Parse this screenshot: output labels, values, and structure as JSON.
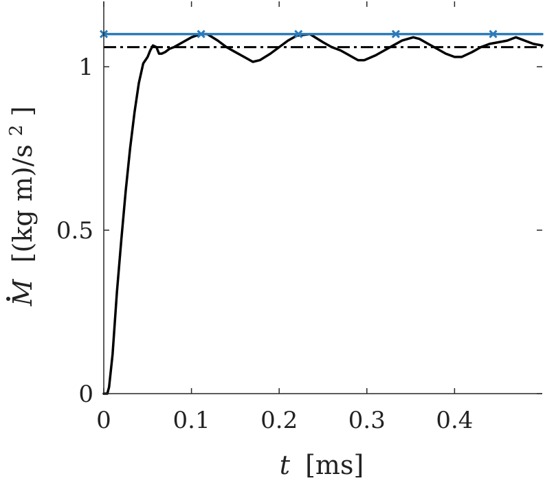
{
  "chart_data": {
    "type": "line",
    "xlabel": {
      "var": "t",
      "unit": "[ms]"
    },
    "ylabel": {
      "var": "M",
      "unit": "[(kg m)/s",
      "sup": "2",
      "tail": "]"
    },
    "xlim": [
      0,
      0.5
    ],
    "ylim": [
      0,
      1.2
    ],
    "xticks": [
      0,
      0.1,
      0.2,
      0.3,
      0.4
    ],
    "xtick_labels": [
      "0",
      "0.1",
      "0.2",
      "0.3",
      "0.4"
    ],
    "yticks": [
      0,
      0.5,
      1
    ],
    "ytick_labels": [
      "0",
      "0.5",
      "1"
    ],
    "grid": false,
    "series": [
      {
        "style": "solid",
        "color": "#000000",
        "x": [
          0,
          0.004,
          0.006,
          0.01,
          0.015,
          0.02,
          0.025,
          0.03,
          0.035,
          0.04,
          0.045,
          0.05,
          0.053,
          0.056,
          0.06,
          0.063,
          0.066,
          0.07,
          0.075,
          0.08,
          0.09,
          0.1,
          0.11,
          0.118,
          0.13,
          0.14,
          0.15,
          0.16,
          0.17,
          0.178,
          0.19,
          0.2,
          0.21,
          0.22,
          0.235,
          0.25,
          0.26,
          0.27,
          0.28,
          0.29,
          0.297,
          0.31,
          0.32,
          0.33,
          0.34,
          0.353,
          0.36,
          0.37,
          0.38,
          0.39,
          0.4,
          0.408,
          0.42,
          0.43,
          0.44,
          0.45,
          0.46,
          0.47,
          0.48,
          0.49,
          0.5
        ],
        "y": [
          0,
          0,
          0.02,
          0.12,
          0.31,
          0.47,
          0.62,
          0.75,
          0.86,
          0.95,
          1.01,
          1.03,
          1.05,
          1.065,
          1.06,
          1.04,
          1.04,
          1.045,
          1.055,
          1.06,
          1.075,
          1.09,
          1.1,
          1.1,
          1.08,
          1.06,
          1.045,
          1.03,
          1.015,
          1.02,
          1.04,
          1.06,
          1.08,
          1.095,
          1.1,
          1.075,
          1.06,
          1.05,
          1.035,
          1.02,
          1.02,
          1.035,
          1.05,
          1.065,
          1.08,
          1.09,
          1.085,
          1.07,
          1.055,
          1.04,
          1.03,
          1.03,
          1.045,
          1.06,
          1.07,
          1.075,
          1.08,
          1.09,
          1.08,
          1.07,
          1.065
        ]
      },
      {
        "style": "solid",
        "color": "#2b7bba",
        "marker": "x",
        "x": [
          0,
          0.111,
          0.222,
          0.333,
          0.444,
          0.5
        ],
        "y": [
          1.1,
          1.1,
          1.1,
          1.1,
          1.1,
          1.1
        ],
        "marker_x": [
          0,
          0.111,
          0.222,
          0.333,
          0.444
        ]
      },
      {
        "style": "dashdot",
        "color": "#000000",
        "x": [
          0,
          0.5
        ],
        "y": [
          1.06,
          1.06
        ]
      }
    ]
  }
}
